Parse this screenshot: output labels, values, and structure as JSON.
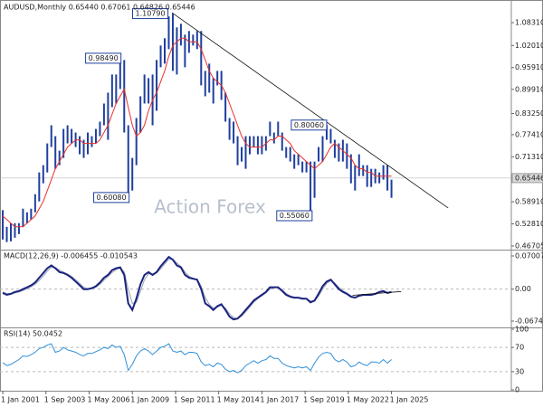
{
  "chart_data": {
    "type": "financial",
    "watermark": "Action Forex",
    "xlim": [
      2000.83,
      2032.4
    ],
    "xticks": [
      {
        "value": 2001.0,
        "label": "1 Jan 2001"
      },
      {
        "value": 2003.667,
        "label": "1 Sep 2003"
      },
      {
        "value": 2006.333,
        "label": "1 May 2006"
      },
      {
        "value": 2009.0,
        "label": "1 Jan 2009"
      },
      {
        "value": 2011.667,
        "label": "1 Sep 2011"
      },
      {
        "value": 2014.333,
        "label": "1 May 2014"
      },
      {
        "value": 2017.0,
        "label": "1 Jan 2017"
      },
      {
        "value": 2019.667,
        "label": "1 Sep 2019"
      },
      {
        "value": 2022.333,
        "label": "1 May 2022"
      },
      {
        "value": 2025.0,
        "label": "1 Jan 2025"
      }
    ],
    "x": [
      2001,
      2001.25,
      2001.5,
      2001.75,
      2002,
      2002.25,
      2002.5,
      2002.75,
      2003,
      2003.25,
      2003.5,
      2003.75,
      2004,
      2004.25,
      2004.5,
      2004.75,
      2005,
      2005.25,
      2005.5,
      2005.75,
      2006,
      2006.25,
      2006.5,
      2006.75,
      2007,
      2007.25,
      2007.5,
      2007.75,
      2008,
      2008.25,
      2008.5,
      2008.75,
      2009,
      2009.25,
      2009.5,
      2009.75,
      2010,
      2010.25,
      2010.5,
      2010.75,
      2011,
      2011.25,
      2011.5,
      2011.75,
      2012,
      2012.25,
      2012.5,
      2012.75,
      2013,
      2013.25,
      2013.5,
      2013.75,
      2014,
      2014.25,
      2014.5,
      2014.75,
      2015,
      2015.25,
      2015.5,
      2015.75,
      2016,
      2016.25,
      2016.5,
      2016.75,
      2017,
      2017.25,
      2017.5,
      2017.75,
      2018,
      2018.25,
      2018.5,
      2018.75,
      2019,
      2019.25,
      2019.5,
      2019.75,
      2020,
      2020.25,
      2020.5,
      2020.75,
      2021,
      2021.25,
      2021.5,
      2021.75,
      2022,
      2022.25,
      2022.5,
      2022.75,
      2023,
      2023.25,
      2023.5,
      2023.75,
      2024,
      2024.25,
      2024.5,
      2024.75,
      2025
    ],
    "panels": [
      {
        "title": "AUDUSD,Monthly  0.65440 0.67061 0.64826 0.65446",
        "ylim": [
          0.4596,
          1.138
        ],
        "yticks": [
          {
            "value": 1.0831,
            "label": "1.08310"
          },
          {
            "value": 1.0201,
            "label": "1.02010"
          },
          {
            "value": 0.9591,
            "label": "0.95910"
          },
          {
            "value": 0.8991,
            "label": "0.89910"
          },
          {
            "value": 0.8325,
            "label": "0.83250"
          },
          {
            "value": 0.7741,
            "label": "0.77410"
          },
          {
            "value": 0.7131,
            "label": "0.71310"
          },
          {
            "value": 0.5891,
            "label": "0.58910"
          },
          {
            "value": 0.5281,
            "label": "0.52810"
          },
          {
            "value": 0.46705,
            "label": "0.46705"
          }
        ],
        "last_price": {
          "value": 0.65446,
          "label": "0.65446"
        },
        "series": [
          {
            "type": "range",
            "color": "#1f3f9e",
            "width": 2,
            "high": [
              0.566,
              0.52,
              0.53,
              0.53,
              0.53,
              0.57,
              0.56,
              0.57,
              0.61,
              0.67,
              0.69,
              0.75,
              0.8,
              0.77,
              0.73,
              0.79,
              0.8,
              0.79,
              0.78,
              0.77,
              0.76,
              0.78,
              0.77,
              0.79,
              0.81,
              0.86,
              0.89,
              0.94,
              0.94,
              0.9849,
              0.98,
              0.8,
              0.71,
              0.82,
              0.88,
              0.94,
              0.93,
              0.94,
              0.98,
              1.02,
              1.04,
              1.1,
              1.1079,
              1.07,
              1.08,
              1.05,
              1.06,
              1.05,
              1.06,
              1.06,
              0.95,
              0.97,
              0.93,
              0.95,
              0.95,
              0.89,
              0.82,
              0.81,
              0.77,
              0.74,
              0.77,
              0.77,
              0.77,
              0.77,
              0.77,
              0.77,
              0.81,
              0.78,
              0.81,
              0.78,
              0.74,
              0.74,
              0.72,
              0.72,
              0.7,
              0.7,
              0.7,
              0.7,
              0.74,
              0.77,
              0.8006,
              0.79,
              0.76,
              0.75,
              0.76,
              0.75,
              0.72,
              0.69,
              0.72,
              0.69,
              0.69,
              0.68,
              0.68,
              0.67,
              0.69,
              0.69,
              0.65
            ],
            "low": [
              0.485,
              0.478,
              0.48,
              0.49,
              0.5,
              0.52,
              0.53,
              0.54,
              0.56,
              0.59,
              0.64,
              0.67,
              0.74,
              0.68,
              0.69,
              0.71,
              0.75,
              0.75,
              0.74,
              0.72,
              0.71,
              0.72,
              0.74,
              0.75,
              0.77,
              0.8,
              0.76,
              0.85,
              0.86,
              0.9,
              0.78,
              0.6008,
              0.62,
              0.69,
              0.78,
              0.86,
              0.86,
              0.8,
              0.84,
              0.96,
              0.97,
              1.01,
              0.95,
              0.94,
              1.02,
              0.96,
              1.0,
              1.02,
              1.01,
              0.91,
              0.88,
              0.89,
              0.86,
              0.91,
              0.87,
              0.81,
              0.76,
              0.75,
              0.69,
              0.7,
              0.68,
              0.72,
              0.74,
              0.72,
              0.72,
              0.73,
              0.77,
              0.75,
              0.77,
              0.73,
              0.71,
              0.7,
              0.68,
              0.69,
              0.67,
              0.67,
              0.5506,
              0.6,
              0.7,
              0.7,
              0.76,
              0.75,
              0.71,
              0.7,
              0.7,
              0.68,
              0.64,
              0.62,
              0.66,
              0.66,
              0.63,
              0.63,
              0.64,
              0.64,
              0.65,
              0.62,
              0.6
            ]
          },
          {
            "type": "line",
            "color": "#e8302a",
            "width": 1,
            "values": [
              0.55,
              0.54,
              0.53,
              0.52,
              0.52,
              0.52,
              0.53,
              0.54,
              0.55,
              0.57,
              0.59,
              0.62,
              0.65,
              0.68,
              0.7,
              0.72,
              0.74,
              0.75,
              0.76,
              0.76,
              0.75,
              0.75,
              0.75,
              0.75,
              0.76,
              0.78,
              0.8,
              0.83,
              0.86,
              0.88,
              0.9,
              0.85,
              0.8,
              0.77,
              0.78,
              0.8,
              0.84,
              0.87,
              0.89,
              0.92,
              0.95,
              0.99,
              1.02,
              1.03,
              1.04,
              1.04,
              1.03,
              1.03,
              1.03,
              1.01,
              0.98,
              0.95,
              0.93,
              0.92,
              0.91,
              0.89,
              0.86,
              0.83,
              0.8,
              0.77,
              0.75,
              0.74,
              0.74,
              0.74,
              0.74,
              0.75,
              0.76,
              0.76,
              0.77,
              0.77,
              0.76,
              0.75,
              0.73,
              0.72,
              0.71,
              0.7,
              0.69,
              0.68,
              0.69,
              0.7,
              0.72,
              0.74,
              0.75,
              0.74,
              0.73,
              0.72,
              0.71,
              0.69,
              0.68,
              0.68,
              0.67,
              0.67,
              0.66,
              0.66,
              0.66,
              0.66,
              0.66
            ]
          }
        ],
        "trendline": {
          "x": [
            2011.45,
            2028.5
          ],
          "y": [
            1.1105,
            0.572
          ]
        },
        "annotations": [
          {
            "label": "1.10790",
            "value": 1.1079,
            "x": 2011.2
          },
          {
            "label": "0.98490",
            "value": 0.9849,
            "x": 2008.3
          },
          {
            "label": "0.60080",
            "value": 0.6008,
            "x": 2008.8
          },
          {
            "label": "0.80060",
            "value": 0.8006,
            "x": 2021.0
          },
          {
            "label": "0.55060",
            "value": 0.5506,
            "x": 2020.1
          }
        ]
      },
      {
        "title": "MACD(12,26,9) -0.006455 -0.010543",
        "ylim": [
          -0.0808,
          0.0796
        ],
        "yticks": [
          0.070074,
          {
            "value": 0,
            "label": "0.00"
          },
          -0.067419
        ],
        "ref_lines": [
          0
        ],
        "series": [
          {
            "type": "line",
            "color": "#9aa3b5",
            "width": 1,
            "values": [
              -0.006,
              -0.009,
              -0.01,
              -0.008,
              -0.006,
              -0.003,
              0.001,
              0.005,
              0.01,
              0.018,
              0.028,
              0.038,
              0.046,
              0.046,
              0.04,
              0.036,
              0.032,
              0.027,
              0.02,
              0.012,
              0.004,
              0.001,
              0.001,
              0.004,
              0.01,
              0.019,
              0.027,
              0.035,
              0.041,
              0.045,
              0.036,
              0,
              -0.03,
              -0.028,
              -0.004,
              0.02,
              0.032,
              0.032,
              0.034,
              0.043,
              0.053,
              0.063,
              0.063,
              0.055,
              0.048,
              0.036,
              0.027,
              0.023,
              0.021,
              0.006,
              -0.018,
              -0.032,
              -0.04,
              -0.038,
              -0.034,
              -0.04,
              -0.052,
              -0.06,
              -0.062,
              -0.057,
              -0.048,
              -0.038,
              -0.028,
              -0.02,
              -0.014,
              -0.008,
              0,
              0.003,
              0.004,
              -0.001,
              -0.009,
              -0.014,
              -0.017,
              -0.018,
              -0.019,
              -0.02,
              -0.025,
              -0.025,
              -0.015,
              0,
              0.012,
              0.018,
              0.013,
              0.004,
              -0.003,
              -0.008,
              -0.014,
              -0.017,
              -0.015,
              -0.013,
              -0.012,
              -0.012,
              -0.011,
              -0.007,
              -0.005,
              -0.007,
              -0.006
            ]
          },
          {
            "type": "line",
            "color": "#1a237e",
            "width": 2,
            "values": [
              -0.008,
              -0.012,
              -0.01,
              -0.006,
              -0.004,
              0,
              0.004,
              0.008,
              0.014,
              0.024,
              0.034,
              0.044,
              0.05,
              0.044,
              0.036,
              0.034,
              0.03,
              0.024,
              0.016,
              0.008,
              0,
              0,
              0.002,
              0.006,
              0.014,
              0.024,
              0.03,
              0.04,
              0.044,
              0.046,
              0.03,
              -0.03,
              -0.044,
              -0.02,
              0.01,
              0.03,
              0.036,
              0.03,
              0.036,
              0.048,
              0.058,
              0.068,
              0.062,
              0.05,
              0.046,
              0.03,
              0.024,
              0.022,
              0.02,
              0,
              -0.03,
              -0.036,
              -0.044,
              -0.036,
              -0.032,
              -0.044,
              -0.058,
              -0.064,
              -0.062,
              -0.054,
              -0.044,
              -0.034,
              -0.024,
              -0.018,
              -0.012,
              -0.006,
              0.004,
              0.004,
              0.004,
              -0.004,
              -0.012,
              -0.016,
              -0.018,
              -0.018,
              -0.02,
              -0.02,
              -0.028,
              -0.024,
              -0.01,
              0.006,
              0.016,
              0.02,
              0.01,
              0,
              -0.006,
              -0.01,
              -0.016,
              -0.018,
              -0.014,
              -0.012,
              -0.012,
              -0.012,
              -0.01,
              -0.006,
              -0.004,
              -0.008,
              -0.006
            ]
          }
        ],
        "trendline": {
          "x": [
            2022.6,
            2025.6
          ],
          "y": [
            -0.013,
            -0.005
          ]
        }
      },
      {
        "title": "RSI(14) 50.0452",
        "ylim": [
          0,
          100
        ],
        "yticks": [
          100,
          70,
          30,
          0
        ],
        "ref_lines": [
          70,
          30
        ],
        "series": [
          {
            "type": "line",
            "color": "#2f8fd8",
            "width": 1,
            "values": [
              45,
              40,
              42,
              46,
              50,
              56,
              55,
              58,
              62,
              68,
              70,
              74,
              76,
              62,
              64,
              70,
              66,
              64,
              62,
              58,
              56,
              60,
              60,
              63,
              66,
              70,
              68,
              74,
              70,
              72,
              58,
              32,
              42,
              56,
              64,
              68,
              64,
              58,
              64,
              70,
              72,
              76,
              64,
              62,
              64,
              58,
              62,
              62,
              60,
              46,
              40,
              42,
              38,
              44,
              42,
              34,
              30,
              32,
              28,
              32,
              40,
              44,
              48,
              44,
              48,
              50,
              56,
              52,
              52,
              44,
              40,
              38,
              36,
              38,
              36,
              38,
              32,
              44,
              54,
              60,
              62,
              60,
              50,
              46,
              50,
              46,
              38,
              40,
              46,
              42,
              40,
              46,
              46,
              44,
              50,
              44,
              50
            ]
          }
        ]
      }
    ]
  }
}
